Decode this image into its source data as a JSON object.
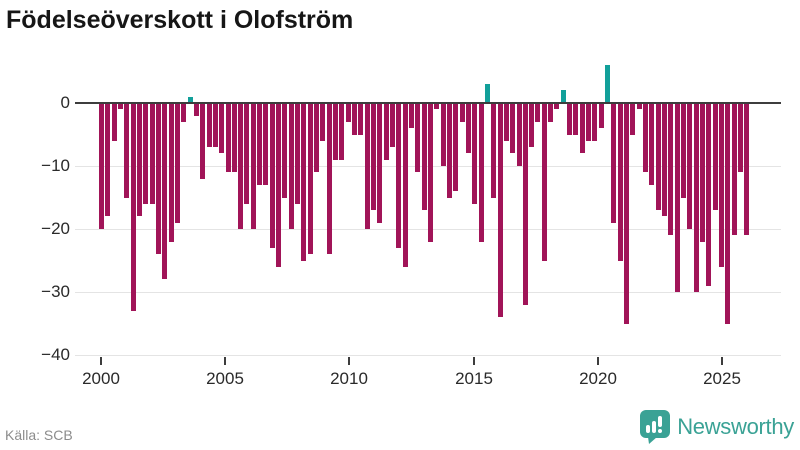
{
  "title": "Födelseöverskott i Olofström",
  "source": "Källa: SCB",
  "logo": {
    "text": "Newsworthy"
  },
  "colors": {
    "bar_negative": "#a11458",
    "bar_positive": "#12a09a",
    "axis": "#3d3d3d",
    "grid": "#e4e4e4",
    "tick_text": "#2a2a2a",
    "muted_text": "#8c8c8c",
    "logo_teal": "#3aa295",
    "title_text": "#161616"
  },
  "y_axis": {
    "tick_labels": [
      "0",
      "−10",
      "−20",
      "−30",
      "−40"
    ],
    "tick_values": [
      0,
      -10,
      -20,
      -30,
      -40
    ]
  },
  "x_axis": {
    "tick_labels": [
      "2000",
      "2005",
      "2010",
      "2015",
      "2020",
      "2025"
    ],
    "tick_values": [
      2000,
      2005,
      2010,
      2015,
      2020,
      2025
    ]
  },
  "chart_data": {
    "type": "bar",
    "title": "Födelseöverskott i Olofström",
    "frequency": "quarterly",
    "x_start": "2000 Q1",
    "x_end": "2025 Q3",
    "xlabel": "",
    "ylabel": "",
    "ylim": [
      -40,
      8
    ],
    "grid": "horizontal",
    "legend": "none",
    "categories": [
      "2000Q1",
      "2000Q2",
      "2000Q3",
      "2000Q4",
      "2001Q1",
      "2001Q2",
      "2001Q3",
      "2001Q4",
      "2002Q1",
      "2002Q2",
      "2002Q3",
      "2002Q4",
      "2003Q1",
      "2003Q2",
      "2003Q3",
      "2003Q4",
      "2004Q1",
      "2004Q2",
      "2004Q3",
      "2004Q4",
      "2005Q1",
      "2005Q2",
      "2005Q3",
      "2005Q4",
      "2006Q1",
      "2006Q2",
      "2006Q3",
      "2006Q4",
      "2007Q1",
      "2007Q2",
      "2007Q3",
      "2007Q4",
      "2008Q1",
      "2008Q2",
      "2008Q3",
      "2008Q4",
      "2009Q1",
      "2009Q2",
      "2009Q3",
      "2009Q4",
      "2010Q1",
      "2010Q2",
      "2010Q3",
      "2010Q4",
      "2011Q1",
      "2011Q2",
      "2011Q3",
      "2011Q4",
      "2012Q1",
      "2012Q2",
      "2012Q3",
      "2012Q4",
      "2013Q1",
      "2013Q2",
      "2013Q3",
      "2013Q4",
      "2014Q1",
      "2014Q2",
      "2014Q3",
      "2014Q4",
      "2015Q1",
      "2015Q2",
      "2015Q3",
      "2015Q4",
      "2016Q1",
      "2016Q2",
      "2016Q3",
      "2016Q4",
      "2017Q1",
      "2017Q2",
      "2017Q3",
      "2017Q4",
      "2018Q1",
      "2018Q2",
      "2018Q3",
      "2018Q4",
      "2019Q1",
      "2019Q2",
      "2019Q3",
      "2019Q4",
      "2020Q1",
      "2020Q2",
      "2020Q3",
      "2020Q4",
      "2021Q1",
      "2021Q2",
      "2021Q3",
      "2021Q4",
      "2022Q1",
      "2022Q2",
      "2022Q3",
      "2022Q4",
      "2023Q1",
      "2023Q2",
      "2023Q3",
      "2023Q4",
      "2024Q1",
      "2024Q2",
      "2024Q3",
      "2024Q4",
      "2025Q1",
      "2025Q2",
      "2025Q3"
    ],
    "values": [
      -20,
      -18,
      -6,
      -1,
      -15,
      -33,
      -18,
      -16,
      -16,
      -24,
      -28,
      -22,
      -19,
      -3,
      1,
      -2,
      -12,
      -7,
      -7,
      -8,
      -11,
      -11,
      -20,
      -16,
      -20,
      -13,
      -13,
      -23,
      -26,
      -15,
      -20,
      -16,
      -25,
      -24,
      -11,
      -6,
      -24,
      -9,
      -9,
      -3,
      -5,
      -5,
      -20,
      -17,
      -19,
      -9,
      -7,
      -23,
      -26,
      -4,
      -11,
      -17,
      -22,
      -1,
      -10,
      -15,
      -14,
      -3,
      -8,
      -16,
      -22,
      3,
      -15,
      -34,
      -6,
      -8,
      -10,
      -32,
      -7,
      -3,
      -25,
      -3,
      -1,
      2,
      -5,
      -5,
      -8,
      -6,
      -6,
      -4,
      6,
      -19,
      -25,
      -35,
      -5,
      -1,
      -11,
      -13,
      -17,
      -18,
      -21,
      -30,
      -15,
      -20,
      -30,
      -22,
      -29,
      -17,
      -26,
      -35,
      -21,
      -11,
      -21
    ],
    "positive_color": "#12a09a",
    "negative_color": "#a11458"
  }
}
